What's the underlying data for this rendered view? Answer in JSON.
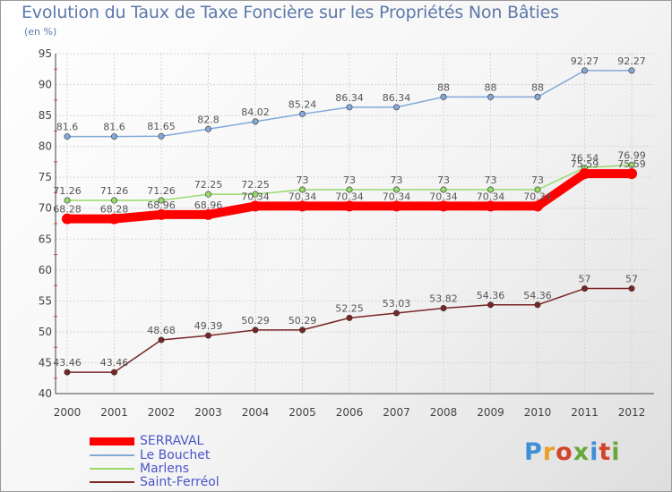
{
  "title": "Evolution du Taux de Taxe Foncière sur les Propriétés Non Bâties",
  "unit": "(en %)",
  "logo": "Proxiti",
  "chart_data": {
    "type": "line",
    "title": "Evolution du Taux de Taxe Foncière sur les Propriétés Non Bâties",
    "ylabel": "(en %)",
    "xlabel": "",
    "x": [
      "2000",
      "2001",
      "2002",
      "2003",
      "2004",
      "2005",
      "2006",
      "2007",
      "2008",
      "2009",
      "2010",
      "2011",
      "2012"
    ],
    "ylim": [
      40,
      95
    ],
    "yticks": [
      40,
      45,
      50,
      55,
      60,
      65,
      70,
      75,
      80,
      85,
      90,
      95
    ],
    "grid": true,
    "legend_position": "bottom-left",
    "series": [
      {
        "name": "SERRAVAL",
        "color": "#ff0000",
        "emphasis": "thick",
        "values": [
          68.28,
          68.28,
          68.96,
          68.96,
          70.34,
          70.34,
          70.34,
          70.34,
          70.34,
          70.34,
          70.34,
          75.59,
          75.59
        ],
        "labels": [
          "68.28",
          "68.28",
          "68.96",
          "68.96",
          "70.34",
          "70.34",
          "70.34",
          "70.34",
          "70.34",
          "70.34",
          "70.34",
          "75.59",
          "75.59"
        ]
      },
      {
        "name": "Le Bouchet",
        "color": "#82a9d8",
        "values": [
          81.6,
          81.6,
          81.65,
          82.8,
          84.02,
          85.24,
          86.34,
          86.34,
          88,
          88,
          88,
          92.27,
          92.27
        ],
        "labels": [
          "81.6",
          "81.6",
          "81.65",
          "82.8",
          "84.02",
          "85.24",
          "86.34",
          "86.34",
          "88",
          "88",
          "88",
          "92.27",
          "92.27"
        ]
      },
      {
        "name": "Marlens",
        "color": "#97d96a",
        "values": [
          71.26,
          71.26,
          71.26,
          72.25,
          72.25,
          73,
          73,
          73,
          73,
          73,
          73,
          76.54,
          76.99
        ],
        "labels": [
          "71.26",
          "71.26",
          "71.26",
          "72.25",
          "72.25",
          "73",
          "73",
          "73",
          "73",
          "73",
          "73",
          "76.54",
          "76.99"
        ]
      },
      {
        "name": "Saint-Ferréol",
        "color": "#7a2525",
        "values": [
          43.46,
          43.46,
          48.68,
          49.39,
          50.29,
          50.29,
          52.25,
          53.03,
          53.82,
          54.36,
          54.36,
          57,
          57
        ],
        "labels": [
          "43.46",
          "43.46",
          "48.68",
          "49.39",
          "50.29",
          "50.29",
          "52.25",
          "53.03",
          "53.82",
          "54.36",
          "54.36",
          "57",
          "57"
        ]
      }
    ]
  }
}
